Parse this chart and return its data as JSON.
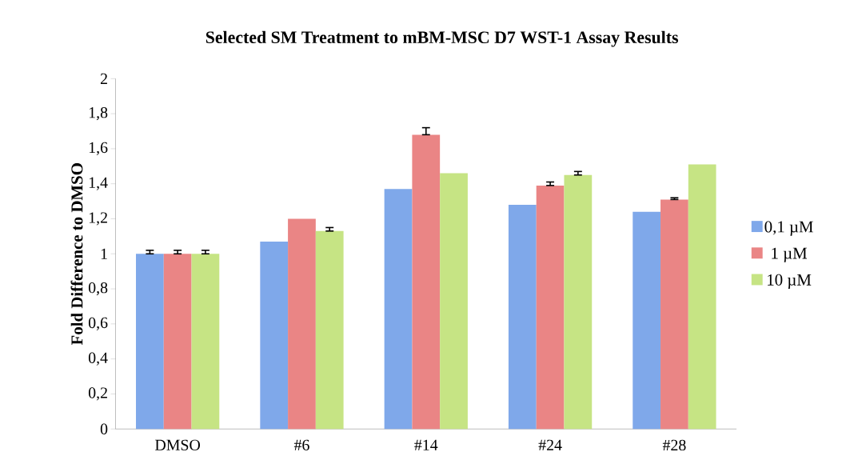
{
  "chart_data": {
    "type": "bar",
    "title": "Selected SM Treatment to mBM-MSC D7 WST-1 Assay Results",
    "ylabel": "Fold Difference to DMSO",
    "categories": [
      "DMSO",
      "#6",
      "#14",
      "#24",
      "#28"
    ],
    "series": [
      {
        "name": "0,1 µM",
        "color": "#7fa8ea",
        "values": [
          1.0,
          1.07,
          1.37,
          1.28,
          1.24
        ],
        "errors": [
          [
            1.0,
            1.02
          ],
          null,
          null,
          null,
          null
        ]
      },
      {
        "name": "1  µM",
        "color": "#ea8585",
        "values": [
          1.0,
          1.2,
          1.68,
          1.39,
          1.31
        ],
        "errors": [
          [
            1.0,
            1.02
          ],
          null,
          [
            1.68,
            1.72
          ],
          [
            1.39,
            1.41
          ],
          [
            1.31,
            1.32
          ]
        ]
      },
      {
        "name": "10 µM",
        "color": "#c6e484",
        "values": [
          1.0,
          1.13,
          1.46,
          1.45,
          1.51
        ],
        "errors": [
          [
            1.0,
            1.02
          ],
          [
            1.13,
            1.15
          ],
          null,
          [
            1.45,
            1.47
          ],
          null
        ]
      }
    ],
    "ylim": [
      0,
      2
    ],
    "yticks": [
      0,
      {
        "value": 0.2,
        "label": "0,2"
      },
      {
        "value": 0.4,
        "label": "0,4"
      },
      {
        "value": 0.6,
        "label": "0,6"
      },
      {
        "value": 0.8,
        "label": "0,8"
      },
      1,
      {
        "value": 1.2,
        "label": "1,2"
      },
      {
        "value": 1.4,
        "label": "1,4"
      },
      {
        "value": 1.6,
        "label": "1,6"
      },
      {
        "value": 1.8,
        "label": "1,8"
      },
      2
    ],
    "legend": "right",
    "grid": false
  }
}
